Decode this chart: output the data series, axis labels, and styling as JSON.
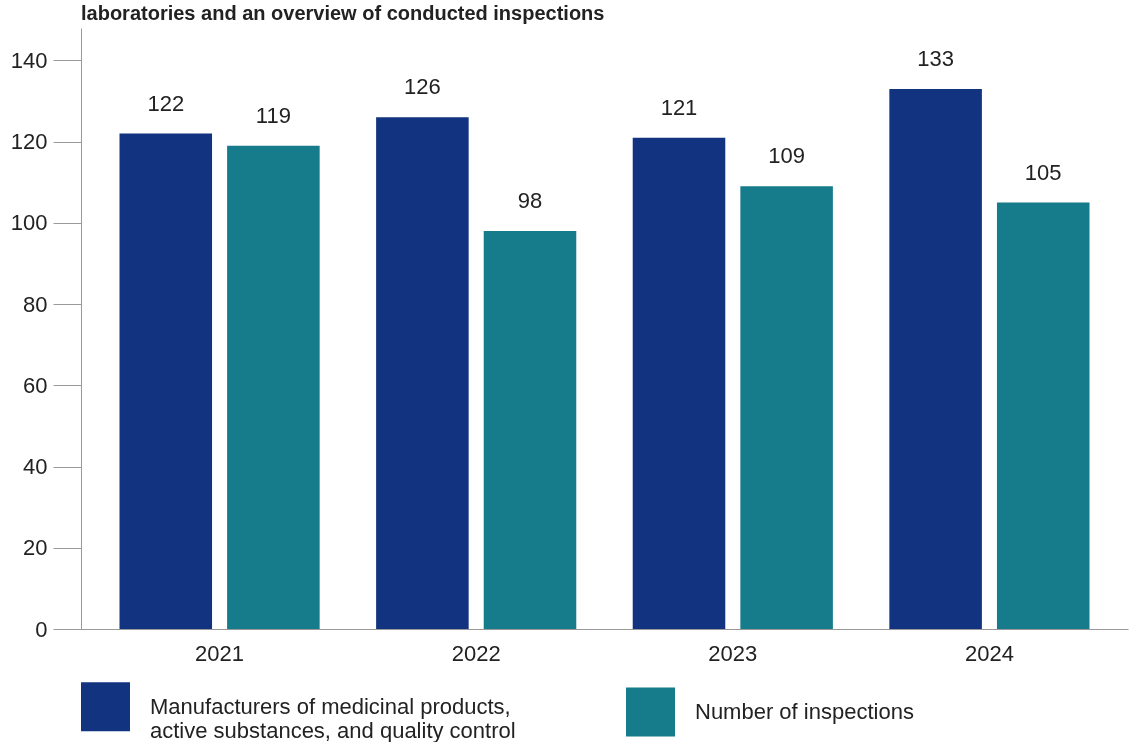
{
  "chart_data": {
    "type": "bar",
    "title": "laboratories and an overview of conducted inspections",
    "categories": [
      "2021",
      "2022",
      "2023",
      "2024"
    ],
    "series": [
      {
        "name": "Manufacturers of medicinal products, active substances, and quality control",
        "color": "#12337f",
        "values": [
          122,
          126,
          121,
          133
        ]
      },
      {
        "name": "Number of inspections",
        "color": "#167b8a",
        "values": [
          119,
          98,
          109,
          105
        ]
      }
    ],
    "ylim": [
      0,
      148
    ],
    "yticks": [
      0,
      20,
      40,
      60,
      80,
      100,
      120,
      140
    ],
    "grid": false,
    "legend": "bottom",
    "data_labels": true
  }
}
